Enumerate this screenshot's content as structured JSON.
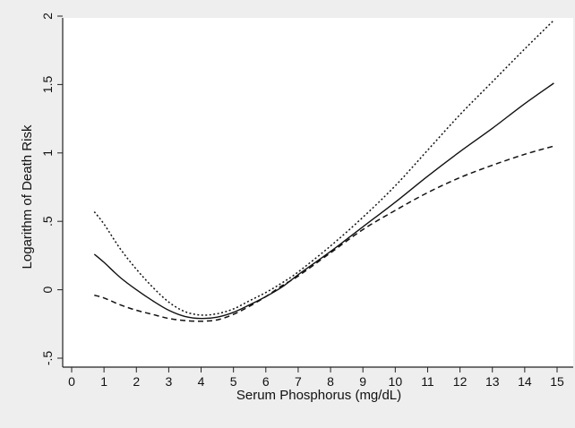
{
  "chart_data": {
    "type": "line",
    "title": "",
    "xlabel": "Serum Phosphorus (mg/dL)",
    "ylabel": "Logarithm of Death Risk",
    "xlim": [
      0,
      15
    ],
    "ylim": [
      -0.5,
      2.0
    ],
    "x_ticks": [
      0,
      1,
      2,
      3,
      4,
      5,
      6,
      7,
      8,
      9,
      10,
      11,
      12,
      13,
      14,
      15
    ],
    "x_tick_labels": [
      "0",
      "1",
      "2",
      "3",
      "4",
      "5",
      "6",
      "7",
      "8",
      "9",
      "10",
      "11",
      "12",
      "13",
      "14",
      "15"
    ],
    "y_ticks": [
      -0.5,
      0,
      0.5,
      1,
      1.5,
      2
    ],
    "y_tick_labels": [
      "-.5",
      "0",
      ".5",
      "1",
      "1.5",
      "2"
    ],
    "grid": false,
    "legend": "none",
    "colors": {
      "line": "#111111",
      "plot_background": "#ffffff",
      "figure_background": "#eeeeee"
    },
    "series": [
      {
        "line_style": "solid",
        "x": [
          0.7,
          1,
          1.5,
          2,
          2.5,
          3,
          3.5,
          4,
          4.5,
          5,
          5.5,
          6,
          6.5,
          7,
          8,
          9,
          10,
          11,
          12,
          13,
          14,
          14.9
        ],
        "y": [
          0.26,
          0.2,
          0.09,
          0.0,
          -0.08,
          -0.15,
          -0.195,
          -0.21,
          -0.2,
          -0.165,
          -0.11,
          -0.05,
          0.02,
          0.11,
          0.28,
          0.46,
          0.64,
          0.83,
          1.01,
          1.18,
          1.36,
          1.51
        ]
      },
      {
        "line_style": "dotted",
        "x": [
          0.7,
          1,
          1.5,
          2,
          2.5,
          3,
          3.5,
          4,
          4.5,
          5,
          5.5,
          6,
          6.5,
          7,
          8,
          9,
          10,
          11,
          12,
          13,
          14,
          14.9
        ],
        "y": [
          0.57,
          0.48,
          0.3,
          0.15,
          0.02,
          -0.09,
          -0.16,
          -0.185,
          -0.175,
          -0.14,
          -0.08,
          -0.02,
          0.05,
          0.13,
          0.32,
          0.53,
          0.76,
          1.02,
          1.28,
          1.52,
          1.76,
          1.97
        ]
      },
      {
        "line_style": "dashed",
        "x": [
          0.7,
          1,
          1.5,
          2,
          2.5,
          3,
          3.5,
          4,
          4.5,
          5,
          5.5,
          6,
          6.5,
          7,
          8,
          9,
          10,
          11,
          12,
          13,
          14,
          14.9
        ],
        "y": [
          -0.04,
          -0.06,
          -0.11,
          -0.15,
          -0.18,
          -0.21,
          -0.225,
          -0.23,
          -0.22,
          -0.18,
          -0.12,
          -0.05,
          0.03,
          0.1,
          0.27,
          0.44,
          0.58,
          0.71,
          0.82,
          0.91,
          0.99,
          1.05
        ]
      }
    ]
  }
}
